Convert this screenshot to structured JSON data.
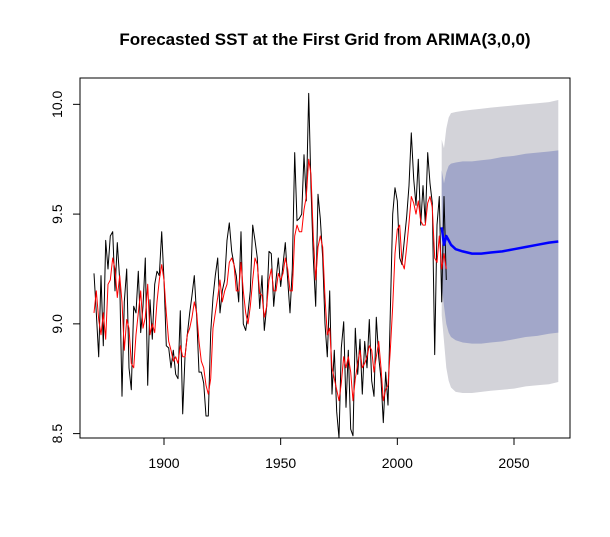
{
  "chart_data": {
    "type": "line",
    "title": "Forecasted SST at the First Grid from ARIMA(3,0,0)",
    "xlabel": "",
    "ylabel": "",
    "xlim": [
      1864,
      2074
    ],
    "ylim": [
      8.48,
      10.12
    ],
    "x_ticks": [
      1900,
      1950,
      2000,
      2050
    ],
    "y_ticks": [
      8.5,
      9.0,
      9.5,
      10.0
    ],
    "y_tick_labels": [
      "8.5",
      "9.0",
      "9.5",
      "10.0"
    ],
    "grid": false,
    "legend": "none",
    "colors": {
      "observed": "#000000",
      "fitted": "#ff0000",
      "forecast": "#0000ff",
      "band_95": "#d3d3d9",
      "band_80": "#a2a7c9"
    },
    "observed": {
      "start_year": 1870,
      "values": [
        9.23,
        9.05,
        8.85,
        9.22,
        8.9,
        9.38,
        9.25,
        9.4,
        9.42,
        9.15,
        9.37,
        9.2,
        8.67,
        9.1,
        9.25,
        8.8,
        8.7,
        9.08,
        9.05,
        9.24,
        8.96,
        9.08,
        9.3,
        8.72,
        9.11,
        8.93,
        9.18,
        9.24,
        9.22,
        9.42,
        9.2,
        8.9,
        8.89,
        8.8,
        8.88,
        8.77,
        8.75,
        9.06,
        8.59,
        8.85,
        8.95,
        9.05,
        9.13,
        9.22,
        9.03,
        8.78,
        8.78,
        8.73,
        8.58,
        8.58,
        8.96,
        9.12,
        9.22,
        9.3,
        9.05,
        9.15,
        9.2,
        9.38,
        9.46,
        9.33,
        9.27,
        9.22,
        9.1,
        9.42,
        9.0,
        8.97,
        9.05,
        9.15,
        9.45,
        9.38,
        9.3,
        9.07,
        9.22,
        8.97,
        9.08,
        9.33,
        9.32,
        9.08,
        9.2,
        9.3,
        9.17,
        9.27,
        9.37,
        9.2,
        9.05,
        9.25,
        9.78,
        9.47,
        9.48,
        9.5,
        9.77,
        9.56,
        10.05,
        9.62,
        9.3,
        9.08,
        9.59,
        9.48,
        9.3,
        9.0,
        8.85,
        9.15,
        8.68,
        8.88,
        8.6,
        8.48,
        8.89,
        9.01,
        8.62,
        8.88,
        8.52,
        8.49,
        8.98,
        8.77,
        8.93,
        8.68,
        8.92,
        8.8,
        9.02,
        8.74,
        8.67,
        9.03,
        8.85,
        8.75,
        8.55,
        8.78,
        8.63,
        9.05,
        9.5,
        9.62,
        9.56,
        9.3,
        9.27,
        9.38,
        9.49,
        9.63,
        9.87,
        9.66,
        9.54,
        9.75,
        9.45,
        9.63,
        9.46,
        9.78,
        9.64,
        9.55,
        8.86,
        9.45,
        9.58,
        9.1,
        9.58,
        9.2
      ]
    },
    "fitted": {
      "start_year": 1870,
      "values": [
        9.05,
        9.15,
        9.02,
        8.95,
        9.05,
        8.93,
        9.18,
        9.2,
        9.3,
        9.25,
        9.12,
        9.22,
        9.1,
        8.88,
        9.02,
        8.98,
        8.82,
        8.8,
        8.95,
        9.05,
        9.15,
        8.98,
        9.03,
        9.18,
        8.95,
        9.0,
        8.96,
        9.1,
        9.2,
        9.27,
        9.2,
        9.05,
        8.92,
        8.88,
        8.83,
        8.85,
        8.82,
        8.9,
        8.85,
        8.85,
        8.95,
        8.98,
        9.03,
        9.1,
        9.05,
        8.92,
        8.83,
        8.8,
        8.72,
        8.68,
        8.75,
        8.98,
        9.05,
        9.12,
        9.2,
        9.1,
        9.15,
        9.18,
        9.28,
        9.3,
        9.27,
        9.15,
        9.15,
        9.28,
        9.15,
        9.05,
        9.0,
        9.08,
        9.2,
        9.3,
        9.27,
        9.14,
        9.13,
        9.03,
        9.08,
        9.2,
        9.25,
        9.15,
        9.15,
        9.23,
        9.2,
        9.23,
        9.3,
        9.25,
        9.15,
        9.15,
        9.4,
        9.45,
        9.42,
        9.42,
        9.52,
        9.58,
        9.75,
        9.68,
        9.4,
        9.2,
        9.35,
        9.4,
        9.35,
        9.12,
        8.95,
        8.98,
        8.8,
        8.75,
        8.7,
        8.65,
        8.73,
        8.85,
        8.8,
        8.85,
        8.78,
        8.65,
        8.75,
        8.82,
        8.88,
        8.8,
        8.82,
        8.85,
        8.9,
        8.88,
        8.78,
        8.85,
        8.92,
        8.8,
        8.65,
        8.7,
        8.72,
        8.88,
        9.08,
        9.32,
        9.43,
        9.45,
        9.28,
        9.25,
        9.35,
        9.46,
        9.58,
        9.55,
        9.5,
        9.56,
        9.47,
        9.45,
        9.45,
        9.55,
        9.58,
        9.53,
        9.3,
        9.28,
        9.4,
        9.25,
        9.32,
        9.25
      ]
    },
    "forecast": {
      "years": [
        2019,
        2020,
        2021,
        2022,
        2023,
        2025,
        2028,
        2032,
        2036,
        2040,
        2045,
        2050,
        2055,
        2060,
        2065,
        2069
      ],
      "mean": [
        9.44,
        9.36,
        9.4,
        9.38,
        9.36,
        9.34,
        9.33,
        9.32,
        9.32,
        9.325,
        9.33,
        9.34,
        9.35,
        9.36,
        9.37,
        9.375
      ],
      "lo80": [
        9.18,
        9.08,
        9.0,
        8.96,
        8.94,
        8.925,
        8.915,
        8.91,
        8.91,
        8.915,
        8.92,
        8.93,
        8.94,
        8.945,
        8.955,
        8.96
      ],
      "hi80": [
        9.7,
        9.64,
        9.69,
        9.72,
        9.73,
        9.735,
        9.74,
        9.74,
        9.745,
        9.75,
        9.76,
        9.765,
        9.775,
        9.78,
        9.785,
        9.79
      ],
      "lo95": [
        9.04,
        8.92,
        8.8,
        8.74,
        8.71,
        8.69,
        8.685,
        8.685,
        8.69,
        8.695,
        8.7,
        8.705,
        8.715,
        8.72,
        8.725,
        8.735
      ],
      "hi95": [
        9.84,
        9.8,
        9.89,
        9.94,
        9.96,
        9.965,
        9.97,
        9.975,
        9.98,
        9.985,
        9.99,
        9.995,
        10.0,
        10.005,
        10.01,
        10.02
      ]
    }
  }
}
